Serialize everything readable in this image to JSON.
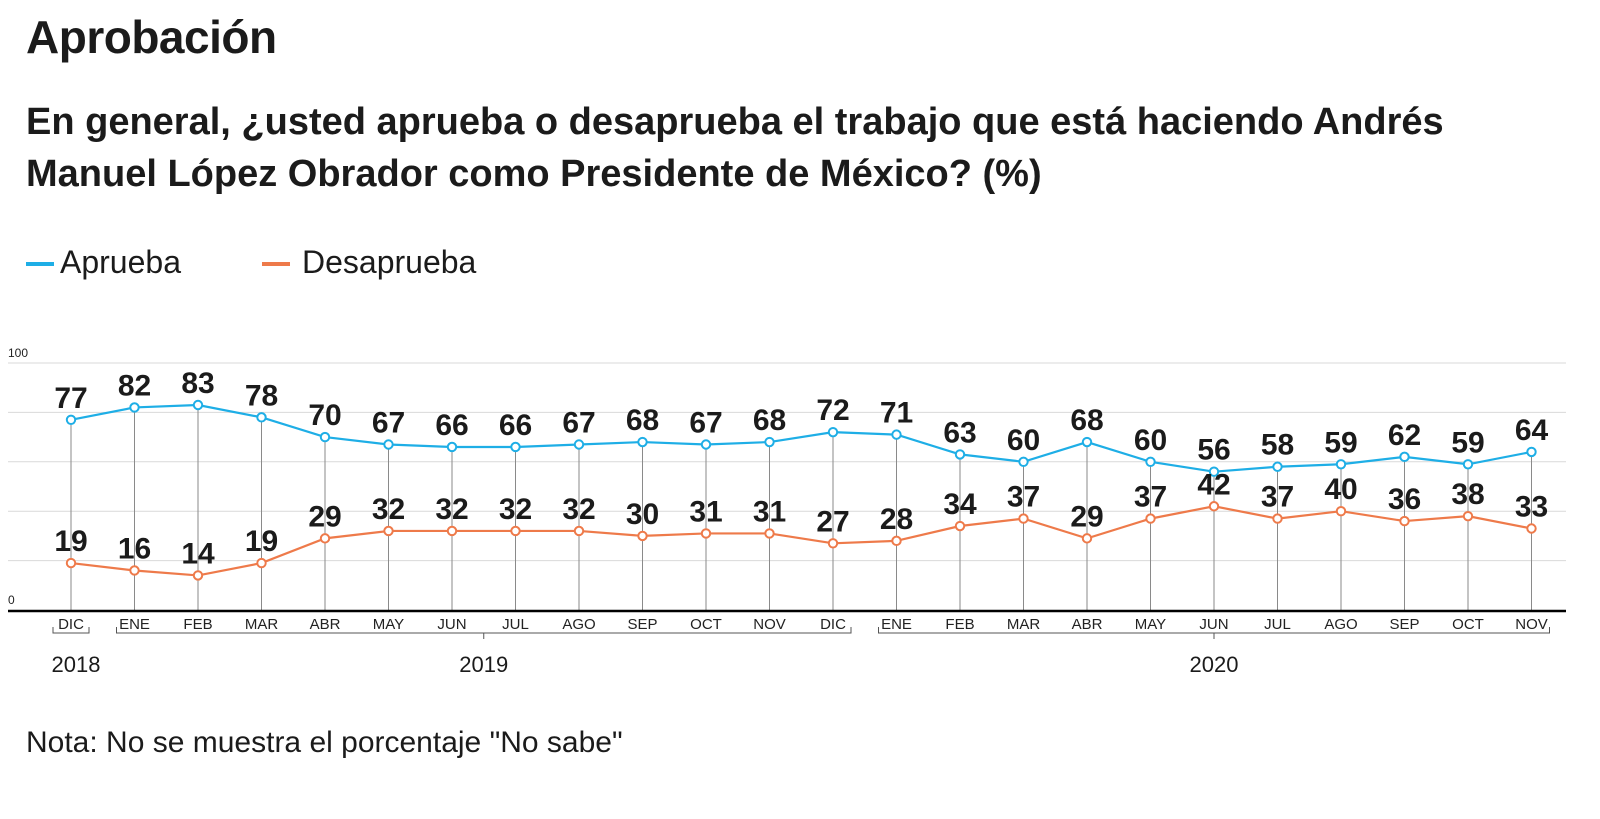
{
  "header": {
    "title": "Aprobación",
    "subtitle": "En general, ¿usted aprueba o desaprueba el trabajo que está haciendo Andrés Manuel López Obrador como Presidente de México?  (%)"
  },
  "legend": {
    "approve_label": "Aprueba",
    "disapprove_label": "Desaprueba"
  },
  "colors": {
    "approve": "#1eaee6",
    "disapprove": "#ee7a4a",
    "grid": "#d9d9d9",
    "axis": "#000000"
  },
  "note": "Nota: No se muestra el porcentaje \"No sabe\"",
  "chart_data": {
    "type": "line",
    "title": "Aprobación",
    "categories": [
      "DIC",
      "ENE",
      "FEB",
      "MAR",
      "ABR",
      "MAY",
      "JUN",
      "JUL",
      "AGO",
      "SEP",
      "OCT",
      "NOV",
      "DIC",
      "ENE",
      "FEB",
      "MAR",
      "ABR",
      "MAY",
      "JUN",
      "JUL",
      "AGO",
      "SEP",
      "OCT",
      "NOV"
    ],
    "years": [
      {
        "label": "2018",
        "start": 0,
        "end": 0
      },
      {
        "label": "2019",
        "start": 1,
        "end": 12
      },
      {
        "label": "2020",
        "start": 13,
        "end": 23
      }
    ],
    "series": [
      {
        "name": "Aprueba",
        "values": [
          77,
          82,
          83,
          78,
          70,
          67,
          66,
          66,
          67,
          68,
          67,
          68,
          72,
          71,
          63,
          60,
          68,
          60,
          56,
          58,
          59,
          62,
          59,
          64
        ]
      },
      {
        "name": "Desaprueba",
        "values": [
          19,
          16,
          14,
          19,
          29,
          32,
          32,
          32,
          32,
          30,
          31,
          31,
          27,
          28,
          34,
          37,
          29,
          37,
          42,
          37,
          40,
          36,
          38,
          33
        ]
      }
    ],
    "ylim": [
      0,
      100
    ],
    "yticks": [
      0,
      100
    ],
    "grid": true,
    "xlabel": "",
    "ylabel": ""
  }
}
